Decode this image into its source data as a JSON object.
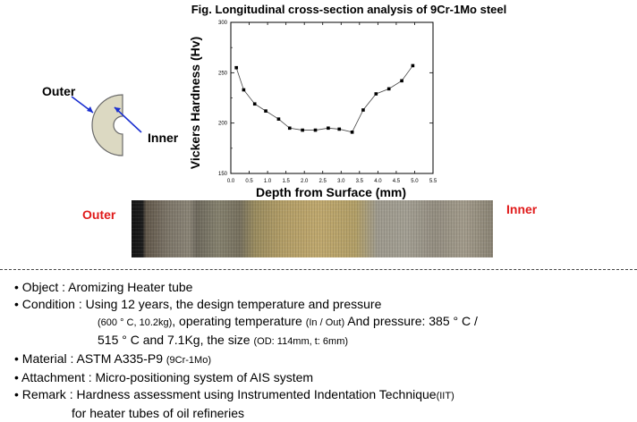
{
  "chart_data": {
    "type": "line",
    "title": "Fig. Longitudinal cross-section analysis of 9Cr-1Mo steel",
    "xlabel": "Depth from Surface (mm)",
    "ylabel": "Vickers Hardness (Hv)",
    "xlim": [
      0,
      5.5
    ],
    "ylim": [
      150,
      300
    ],
    "xticks": [
      0.0,
      0.5,
      1.0,
      1.5,
      2.0,
      2.5,
      3.0,
      3.5,
      4.0,
      4.5,
      5.0,
      5.5
    ],
    "yticks": [
      150,
      200,
      250,
      300
    ],
    "grid": false,
    "series": [
      {
        "x": [
          0.15,
          0.35,
          0.65,
          0.95,
          1.3,
          1.6,
          1.95,
          2.3,
          2.65,
          2.95,
          3.3,
          3.6,
          3.95,
          4.3,
          4.65,
          4.95
        ],
        "y": [
          255,
          233,
          219,
          212,
          204,
          195,
          193,
          193,
          195,
          194,
          191,
          213,
          229,
          234,
          242,
          257
        ]
      }
    ]
  },
  "diagram": {
    "outer_label": "Outer",
    "inner_label": "Inner"
  },
  "strip": {
    "outer_label": "Outer",
    "inner_label": "Inner"
  },
  "notes": [
    {
      "bullet": "•",
      "main": "Object : Aromizing Heater tube"
    },
    {
      "bullet": "•",
      "main": "Condition : Using 12 years, the design temperature and pressure"
    },
    {
      "cont_small": "(600 ° C, 10.2kg)",
      "cont": ", operating temperature",
      "cont_small2": "(In / Out)",
      "cont2": " And pressure: 385 ° C /"
    },
    {
      "cont": "515 ° C and 7.1Kg, the size",
      "cont_small": "(OD: 114mm, t: 6mm)"
    },
    {
      "bullet": "•",
      "main": "Material : ASTM A335-P9",
      "small": "(9Cr-1Mo)"
    },
    {
      "bullet": "•",
      "main": "Attachment : Micro-positioning system of AIS system"
    },
    {
      "bullet": "•",
      "main": "Remark : Hardness assessment using Instrumented Indentation Technique",
      "small": "(IIT)"
    },
    {
      "cont": "for heater tubes of oil refineries"
    }
  ]
}
